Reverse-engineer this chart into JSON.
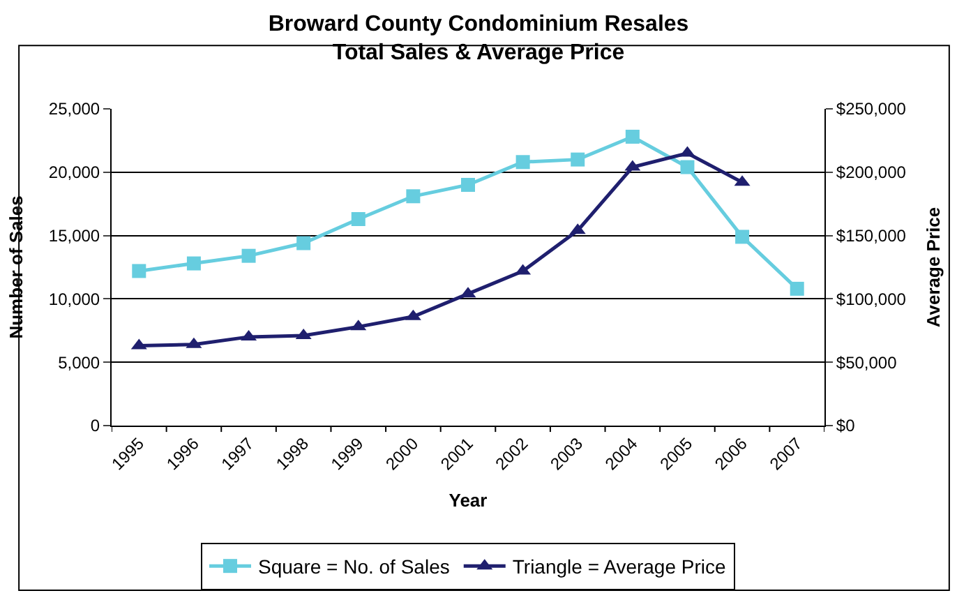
{
  "chart_data": {
    "type": "line",
    "title": "Broward County Condominium Resales\nTotal Sales & Average Price",
    "xlabel": "Year",
    "ylabel": "Number of Sales",
    "y2label": "Average Price",
    "categories": [
      "1995",
      "1996",
      "1997",
      "1998",
      "1999",
      "2000",
      "2001",
      "2002",
      "2003",
      "2004",
      "2005",
      "2006",
      "2007"
    ],
    "series": [
      {
        "name": "Square = No. of Sales",
        "color": "#66cddf",
        "marker": "square",
        "values": [
          12200,
          12800,
          13400,
          14400,
          16300,
          18100,
          19000,
          20800,
          21000,
          22800,
          20400,
          14900,
          10800
        ]
      },
      {
        "name": "Triangle = Average Price",
        "color": "#1f1f6e",
        "marker": "triangle",
        "axis": "y2",
        "values": [
          63000,
          64000,
          70000,
          71000,
          78000,
          86000,
          104000,
          122000,
          154000,
          204000,
          215000,
          192000,
          null
        ]
      }
    ],
    "ylim": [
      0,
      25000
    ],
    "yticks": [
      {
        "value": 0,
        "label": "0"
      },
      {
        "value": 5000,
        "label": "5,000"
      },
      {
        "value": 10000,
        "label": "10,000"
      },
      {
        "value": 15000,
        "label": "15,000"
      },
      {
        "value": 20000,
        "label": "20,000"
      },
      {
        "value": 25000,
        "label": "25,000"
      }
    ],
    "y2lim": [
      0,
      250000
    ],
    "y2ticks": [
      {
        "value": 0,
        "label": "$0"
      },
      {
        "value": 50000,
        "label": "$50,000"
      },
      {
        "value": 100000,
        "label": "$100,000"
      },
      {
        "value": 150000,
        "label": "$150,000"
      },
      {
        "value": 200000,
        "label": "$200,000"
      },
      {
        "value": 250000,
        "label": "$250,000"
      }
    ],
    "grid": "y",
    "legend": "bottom",
    "line_style": "solid"
  }
}
